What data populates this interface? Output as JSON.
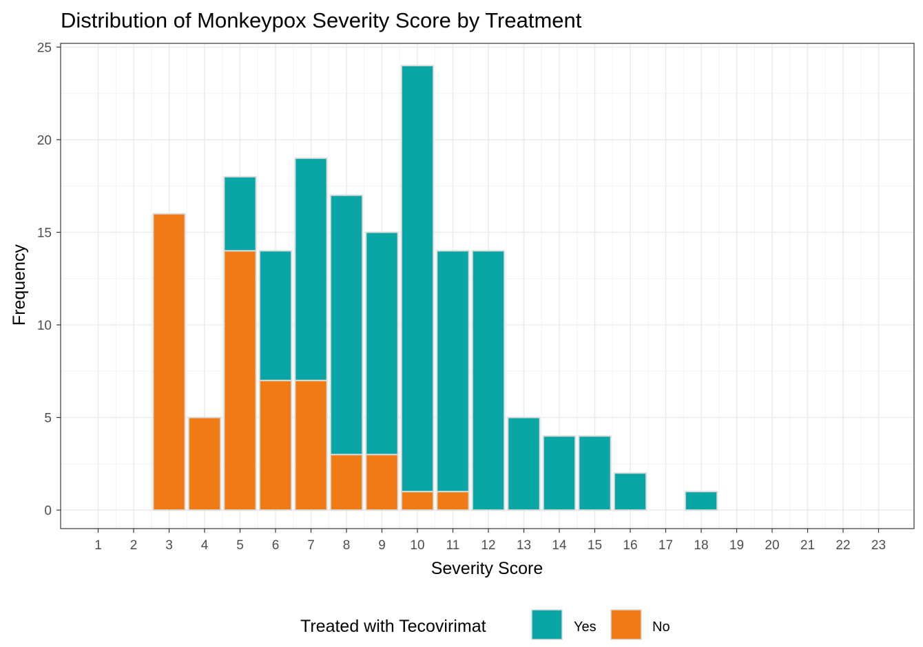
{
  "chart_data": {
    "type": "bar",
    "stacked": true,
    "title": "Distribution of Monkeypox Severity Score by Treatment",
    "xlabel": "Severity Score",
    "ylabel": "Frequency",
    "categories": [
      "1",
      "2",
      "3",
      "4",
      "5",
      "6",
      "7",
      "8",
      "9",
      "10",
      "11",
      "12",
      "13",
      "14",
      "15",
      "16",
      "17",
      "18",
      "19",
      "20",
      "21",
      "22",
      "23"
    ],
    "series": [
      {
        "name": "No",
        "color": "#F07A13",
        "values": [
          0,
          0,
          16,
          5,
          14,
          7,
          7,
          3,
          3,
          1,
          1,
          0,
          0,
          0,
          0,
          0,
          0,
          0,
          0,
          0,
          0,
          0,
          0
        ]
      },
      {
        "name": "Yes",
        "color": "#0AA6A6",
        "values": [
          0,
          0,
          0,
          0,
          4,
          7,
          12,
          14,
          12,
          23,
          13,
          14,
          5,
          4,
          4,
          2,
          0,
          1,
          0,
          0,
          0,
          0,
          0
        ]
      }
    ],
    "yticks": [
      0,
      5,
      10,
      15,
      20,
      25
    ],
    "ylim": [
      -1,
      25.2
    ],
    "grid": true,
    "legend": {
      "title": "Treated with Tecovirimat",
      "position": "bottom",
      "items": [
        {
          "label": "Yes",
          "color": "#0AA6A6"
        },
        {
          "label": "No",
          "color": "#F07A13"
        }
      ]
    }
  }
}
